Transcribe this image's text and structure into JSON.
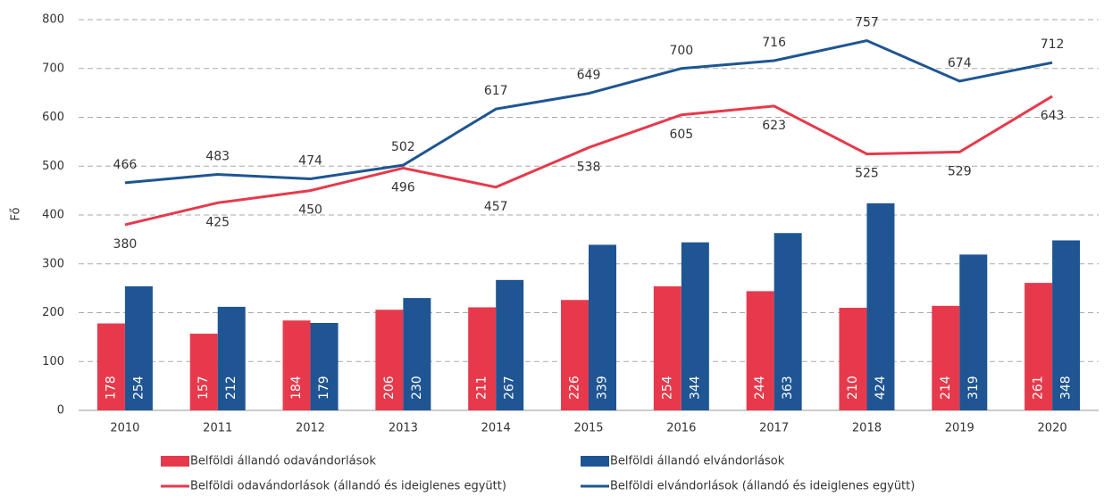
{
  "chart_data": {
    "type": "bar",
    "y_label": "Fő",
    "categories": [
      "2010",
      "2011",
      "2012",
      "2013",
      "2014",
      "2015",
      "2016",
      "2017",
      "2018",
      "2019",
      "2020"
    ],
    "ylim": [
      0,
      800
    ],
    "yticks": [
      0,
      100,
      200,
      300,
      400,
      500,
      600,
      700,
      800
    ],
    "grid": true,
    "series": [
      {
        "name": "Belföldi állandó odavándorlások",
        "type": "bar",
        "color": "#e63a4c",
        "values": [
          178,
          157,
          184,
          206,
          211,
          226,
          254,
          244,
          210,
          214,
          261
        ]
      },
      {
        "name": "Belföldi állandó elvándorlások",
        "type": "bar",
        "color": "#1f5592",
        "values": [
          254,
          212,
          179,
          230,
          267,
          339,
          344,
          363,
          424,
          319,
          348
        ]
      },
      {
        "name": "Belföldi odavándorlások (állandó és ideiglenes együtt)",
        "type": "line",
        "color": "#e63a4c",
        "values": [
          380,
          425,
          450,
          496,
          457,
          538,
          605,
          623,
          525,
          529,
          643
        ]
      },
      {
        "name": "Belföldi elvándorlások (állandó és ideiglenes együtt)",
        "type": "line",
        "color": "#1f5592",
        "values": [
          466,
          483,
          474,
          502,
          617,
          649,
          700,
          716,
          757,
          674,
          712
        ]
      }
    ]
  }
}
